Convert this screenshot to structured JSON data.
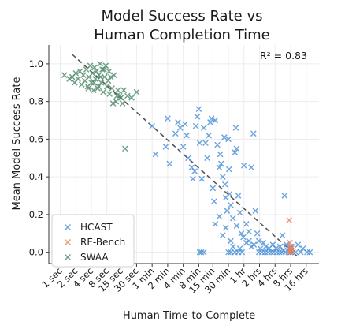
{
  "chart_data": {
    "type": "scatter",
    "title_lines": [
      "Model Success Rate vs",
      "Human Completion Time"
    ],
    "xlabel": "Human Time-to-Complete",
    "ylabel": "Mean Model Success Rate",
    "x_scale": "log",
    "x_unit": "seconds",
    "ylim": [
      -0.06,
      1.1
    ],
    "xlim_seconds": [
      0.6,
      102000
    ],
    "x_ticks": [
      {
        "label": "1 sec",
        "seconds": 1
      },
      {
        "label": "2 sec",
        "seconds": 2
      },
      {
        "label": "4 sec",
        "seconds": 4
      },
      {
        "label": "8 sec",
        "seconds": 8
      },
      {
        "label": "15 sec",
        "seconds": 15
      },
      {
        "label": "30 sec",
        "seconds": 30
      },
      {
        "label": "1 min",
        "seconds": 60
      },
      {
        "label": "2 min",
        "seconds": 120
      },
      {
        "label": "4 min",
        "seconds": 240
      },
      {
        "label": "8 min",
        "seconds": 480
      },
      {
        "label": "15 min",
        "seconds": 900
      },
      {
        "label": "30 min",
        "seconds": 1800
      },
      {
        "label": "1 hr",
        "seconds": 3600
      },
      {
        "label": "2 hrs",
        "seconds": 7200
      },
      {
        "label": "4 hrs",
        "seconds": 14400
      },
      {
        "label": "8 hrs",
        "seconds": 28800
      },
      {
        "label": "16 hrs",
        "seconds": 57600
      }
    ],
    "y_ticks": [
      {
        "label": "0.0",
        "value": 0.0
      },
      {
        "label": "0.2",
        "value": 0.2
      },
      {
        "label": "0.4",
        "value": 0.4
      },
      {
        "label": "0.6",
        "value": 0.6
      },
      {
        "label": "0.8",
        "value": 0.8
      },
      {
        "label": "1.0",
        "value": 1.0
      }
    ],
    "grid": true,
    "annotation": "R² = 0.83",
    "trendline": {
      "style": "dashed",
      "color": "#555555",
      "from": {
        "seconds": 1.7,
        "value": 1.05
      },
      "to": {
        "seconds": 38000,
        "value": -0.02
      }
    },
    "legend": {
      "position": "bottom-left"
    },
    "series": [
      {
        "name": "HCAST",
        "color": "#4a90d9",
        "points": [
          [
            60,
            0.67
          ],
          [
            70,
            0.52
          ],
          [
            110,
            0.56
          ],
          [
            120,
            0.71
          ],
          [
            130,
            0.47
          ],
          [
            170,
            0.63
          ],
          [
            190,
            0.69
          ],
          [
            210,
            0.66
          ],
          [
            240,
            0.56
          ],
          [
            260,
            0.68
          ],
          [
            280,
            0.62
          ],
          [
            300,
            0.5
          ],
          [
            350,
            0.45
          ],
          [
            370,
            0.39
          ],
          [
            400,
            0.43
          ],
          [
            420,
            0.67
          ],
          [
            450,
            0.72
          ],
          [
            480,
            0.76
          ],
          [
            500,
            0.58
          ],
          [
            550,
            0.39
          ],
          [
            600,
            0.66
          ],
          [
            650,
            0.58
          ],
          [
            700,
            0.5
          ],
          [
            750,
            0.62
          ],
          [
            800,
            0.69
          ],
          [
            850,
            0.71
          ],
          [
            900,
            0.34
          ],
          [
            950,
            0.27
          ],
          [
            1000,
            0.7
          ],
          [
            1100,
            0.57
          ],
          [
            1200,
            0.45
          ],
          [
            1250,
            0.52
          ],
          [
            1300,
            0.47
          ],
          [
            1400,
            0.4
          ],
          [
            1500,
            0.61
          ],
          [
            1550,
            0.36
          ],
          [
            1600,
            0.29
          ],
          [
            1700,
            0.22
          ],
          [
            1800,
            0.6
          ],
          [
            1850,
            0.44
          ],
          [
            1900,
            0.31
          ],
          [
            2000,
            0.25
          ],
          [
            2200,
            0.18
          ],
          [
            2400,
            0.53
          ],
          [
            2500,
            0.66
          ],
          [
            2600,
            0.55
          ],
          [
            2800,
            0.3
          ],
          [
            3000,
            0.21
          ],
          [
            3200,
            0.1
          ],
          [
            3600,
            0.46
          ],
          [
            4000,
            0.15
          ],
          [
            4500,
            0.11
          ],
          [
            5000,
            0.45
          ],
          [
            5500,
            0.63
          ],
          [
            6000,
            0.22
          ],
          [
            1000,
            0.15
          ],
          [
            1200,
            0.19
          ],
          [
            1400,
            0.09
          ],
          [
            1600,
            0.13
          ],
          [
            2000,
            0.06
          ],
          [
            2200,
            0.03
          ],
          [
            2600,
            0.14
          ],
          [
            3000,
            0.02
          ],
          [
            3500,
            0.08
          ],
          [
            4000,
            0.05
          ],
          [
            4500,
            0.06
          ],
          [
            5000,
            0.03
          ],
          [
            5600,
            0.04
          ],
          [
            6500,
            0.1
          ],
          [
            7000,
            0.06
          ],
          [
            7500,
            0.02
          ],
          [
            8500,
            0.05
          ],
          [
            9500,
            0.03
          ],
          [
            11000,
            0.02
          ],
          [
            13000,
            0.04
          ],
          [
            15000,
            0.02
          ],
          [
            18000,
            0.03
          ],
          [
            21000,
            0.01
          ],
          [
            24000,
            0.04
          ],
          [
            27000,
            0.02
          ],
          [
            30000,
            0.03
          ],
          [
            40000,
            0.04
          ],
          [
            50000,
            0.02
          ],
          [
            20000,
            0.09
          ],
          [
            22000,
            0.3
          ],
          [
            500,
            0.0
          ],
          [
            540,
            0.0
          ],
          [
            600,
            0.0
          ],
          [
            1800,
            0.0
          ],
          [
            2000,
            0.0
          ],
          [
            2400,
            0.0
          ],
          [
            2800,
            0.0
          ],
          [
            3300,
            0.0
          ],
          [
            7000,
            0.0
          ],
          [
            8000,
            0.0
          ],
          [
            9200,
            0.0
          ],
          [
            10500,
            0.0
          ],
          [
            12000,
            0.0
          ],
          [
            13500,
            0.0
          ],
          [
            15500,
            0.0
          ],
          [
            17500,
            0.0
          ],
          [
            19500,
            0.0
          ],
          [
            23000,
            0.0
          ],
          [
            26000,
            0.0
          ],
          [
            29000,
            0.0
          ],
          [
            32000,
            0.0
          ],
          [
            36000,
            0.0
          ],
          [
            45000,
            0.0
          ],
          [
            60000,
            0.0
          ],
          [
            68000,
            0.0
          ]
        ]
      },
      {
        "name": "RE-Bench",
        "color": "#e8805a",
        "points": [
          [
            27000,
            0.17
          ],
          [
            28000,
            0.05
          ],
          [
            28500,
            0.03
          ],
          [
            29000,
            0.02
          ],
          [
            29500,
            0.01
          ],
          [
            28200,
            0.0
          ],
          [
            28800,
            0.0
          ],
          [
            30000,
            0.02
          ]
        ]
      },
      {
        "name": "SWAA",
        "color": "#4d8a6a",
        "points": [
          [
            1.2,
            0.94
          ],
          [
            1.5,
            0.92
          ],
          [
            1.7,
            0.93
          ],
          [
            1.9,
            0.9
          ],
          [
            2.0,
            0.95
          ],
          [
            2.2,
            0.92
          ],
          [
            2.4,
            0.96
          ],
          [
            2.6,
            0.89
          ],
          [
            2.8,
            0.94
          ],
          [
            3.0,
            0.91
          ],
          [
            3.2,
            0.97
          ],
          [
            3.4,
            0.88
          ],
          [
            3.6,
            0.93
          ],
          [
            3.8,
            0.99
          ],
          [
            4.0,
            0.9
          ],
          [
            4.2,
            0.95
          ],
          [
            4.4,
            0.86
          ],
          [
            4.6,
            0.98
          ],
          [
            4.8,
            0.92
          ],
          [
            5.0,
            0.96
          ],
          [
            5.3,
            0.87
          ],
          [
            5.6,
            0.94
          ],
          [
            5.9,
            1.0
          ],
          [
            6.2,
            0.9
          ],
          [
            6.5,
            0.97
          ],
          [
            6.8,
            0.85
          ],
          [
            7.2,
            0.93
          ],
          [
            7.6,
            0.99
          ],
          [
            8.0,
            0.88
          ],
          [
            8.5,
            0.91
          ],
          [
            9.0,
            0.84
          ],
          [
            9.5,
            0.93
          ],
          [
            10.0,
            0.87
          ],
          [
            11.0,
            0.94
          ],
          [
            12.0,
            0.8
          ],
          [
            13.0,
            0.86
          ],
          [
            14.0,
            0.83
          ],
          [
            15.0,
            0.82
          ],
          [
            17.0,
            0.86
          ],
          [
            18.0,
            0.55
          ],
          [
            20.0,
            0.83
          ],
          [
            24.0,
            0.82
          ],
          [
            30.0,
            0.85
          ],
          [
            6.0,
            0.93
          ],
          [
            7.0,
            0.97
          ],
          [
            4.5,
            0.9
          ],
          [
            3.5,
            0.87
          ],
          [
            5.5,
            0.88
          ],
          [
            8.8,
            0.96
          ],
          [
            10.5,
            0.79
          ],
          [
            12.5,
            0.83
          ],
          [
            16.0,
            0.79
          ]
        ]
      }
    ]
  }
}
